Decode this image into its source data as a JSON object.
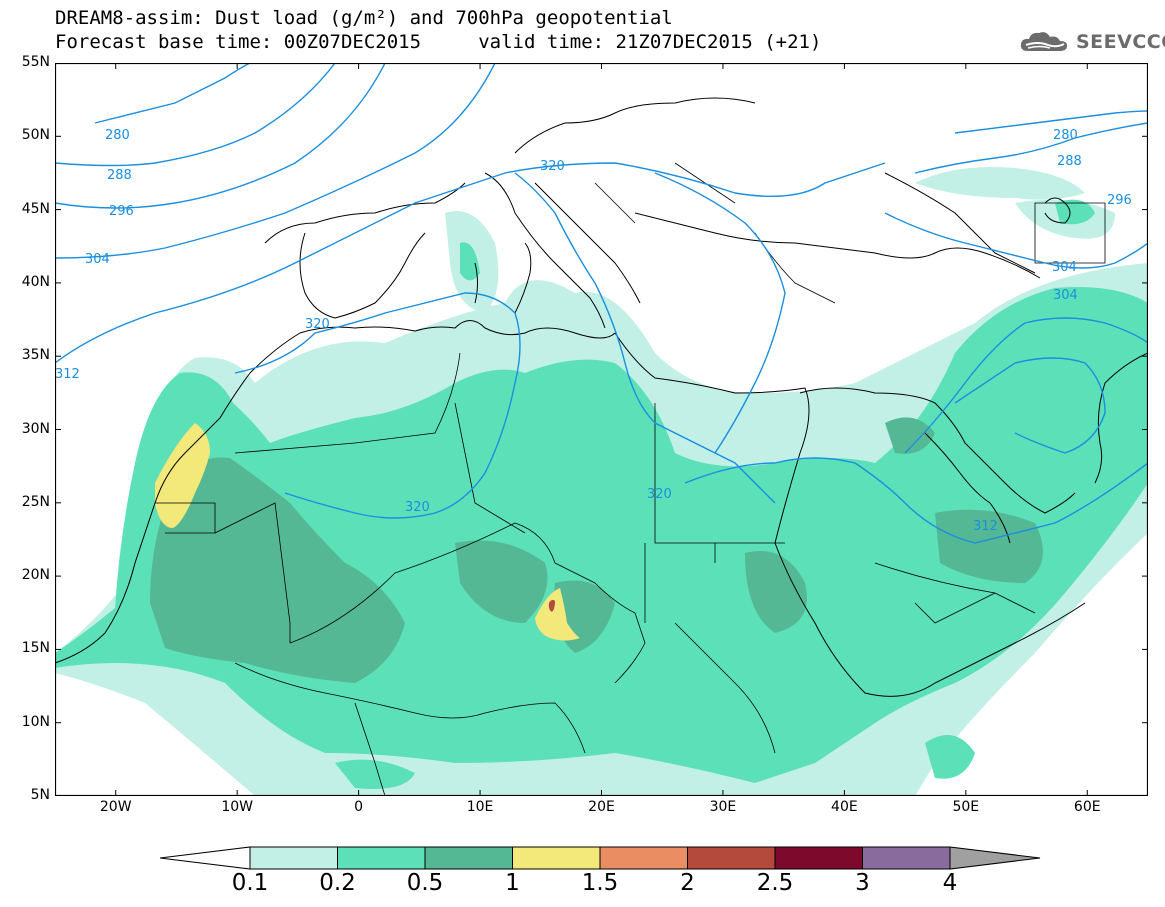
{
  "title": {
    "line1": "DREAM8-assim: Dust load (g/m²) and 700hPa geopotential",
    "line2": "Forecast base time: 00Z07DEC2015     valid time: 21Z07DEC2015 (+21)"
  },
  "logo": {
    "text": "SEEVCCC",
    "icon": "cloud-logo-icon"
  },
  "axes": {
    "lat_labels": [
      "55N",
      "50N",
      "45N",
      "40N",
      "35N",
      "30N",
      "25N",
      "20N",
      "15N",
      "10N",
      "5N"
    ],
    "lat_values": [
      55,
      50,
      45,
      40,
      35,
      30,
      25,
      20,
      15,
      10,
      5
    ],
    "lon_labels": [
      "20W",
      "10W",
      "0",
      "10E",
      "20E",
      "30E",
      "40E",
      "50E",
      "60E"
    ],
    "lon_values": [
      -20,
      -10,
      0,
      10,
      20,
      30,
      40,
      50,
      60
    ],
    "lon_range": [
      -25,
      65
    ],
    "lat_range": [
      5,
      55
    ]
  },
  "geopotential": {
    "color": "#1a8fe0",
    "contour_labels": [
      "280",
      "288",
      "296",
      "304",
      "312",
      "320",
      "320",
      "320",
      "320",
      "280",
      "288",
      "296",
      "304",
      "304",
      "312"
    ]
  },
  "colorbar": {
    "labels": [
      "0.1",
      "0.2",
      "0.5",
      "1",
      "1.5",
      "2",
      "2.5",
      "3",
      "4"
    ],
    "colors": [
      "#c2f0e6",
      "#5ce0b8",
      "#55b894",
      "#f3e87a",
      "#ea8d62",
      "#b44a3c",
      "#7d0a2c",
      "#8a6b9e"
    ],
    "under_color": "#ffffff",
    "over_color": "#a0a0a0"
  },
  "dust_colors": {
    "level1": "#c2f0e6",
    "level2": "#5ce0b8",
    "level3": "#55b894",
    "level4": "#f3e87a",
    "level6": "#b44a3c"
  }
}
